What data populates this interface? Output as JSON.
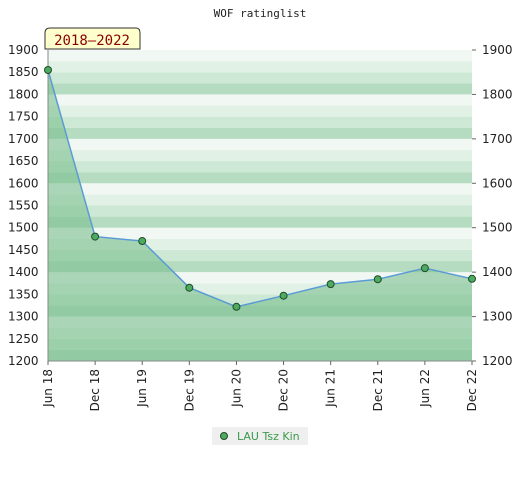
{
  "chart_data": {
    "type": "area",
    "title": "WOF ratinglist",
    "period_badge": "2018–2022",
    "xlabel": "",
    "ylabel": "",
    "ylim": [
      1200,
      1900
    ],
    "yticks": [
      1900,
      1850,
      1800,
      1750,
      1700,
      1650,
      1600,
      1550,
      1500,
      1450,
      1400,
      1350,
      1300,
      1250,
      1200
    ],
    "right_yticks": [
      1900,
      1800,
      1700,
      1600,
      1500,
      1400,
      1300,
      1200
    ],
    "categories": [
      "Jun 18",
      "Dec 18",
      "Jun 19",
      "Dec 19",
      "Jun 20",
      "Dec 20",
      "Jun 21",
      "Dec 21",
      "Jun 22",
      "Dec 22"
    ],
    "series": [
      {
        "name": "LAU Tsz Kin",
        "values": [
          1855,
          1480,
          1470,
          1365,
          1322,
          1347,
          1373,
          1384,
          1409,
          1385
        ]
      }
    ],
    "grid": true,
    "legend": "bottom-center",
    "colors": {
      "line": "#5b9bd5",
      "fill": "#7cc08f",
      "marker": "#4daa5e",
      "marker_stroke": "#1e4d2b",
      "badge_bg": "#ffffcc",
      "badge_text": "#8b0000"
    }
  }
}
